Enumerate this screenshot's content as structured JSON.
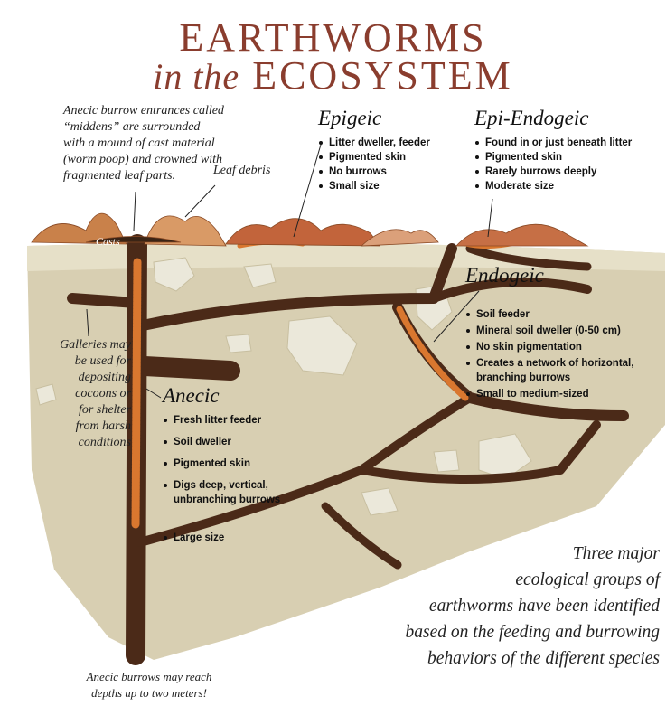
{
  "title": {
    "line1": "EARTHWORMS",
    "line2_prefix": "in the",
    "line2_main": "ECOSYSTEM"
  },
  "notes": {
    "middens": [
      "Anecic burrow entrances called",
      "“middens” are surrounded",
      "with a mound of cast material",
      "(worm poop) and crowned with",
      "fragmented leaf parts."
    ],
    "leaf_debris": "Leaf debris",
    "casts": "Casts",
    "galleries": [
      "Galleries may",
      "be used for",
      "depositing",
      "cocoons or",
      "for shelter",
      "from harsh",
      "conditions"
    ],
    "depth": [
      "Anecic burrows may reach",
      "depths up to two meters!"
    ],
    "summary": [
      "Three major",
      "ecological groups of",
      "earthworms have been identified",
      "based on the feeding and burrowing",
      "behaviors of the different species"
    ]
  },
  "groups": [
    {
      "name": "Epigeic",
      "traits": [
        "Litter dweller, feeder",
        "Pigmented skin",
        "No burrows",
        "Small size"
      ]
    },
    {
      "name": "Epi-Endogeic",
      "traits": [
        "Found in or just beneath litter",
        "Pigmented skin",
        "Rarely burrows deeply",
        "Moderate size"
      ]
    },
    {
      "name": "Endogeic",
      "traits": [
        "Soil feeder",
        "Mineral soil dweller (0-50 cm)",
        "No skin pigmentation",
        "Creates a network of horizontal, branching burrows",
        "Small to medium-sized"
      ]
    },
    {
      "name": "Anecic",
      "traits": [
        "Fresh litter feeder",
        "Soil dweller",
        "Pigmented skin",
        "Digs deep, vertical, unbranching burrows",
        "Large size"
      ]
    }
  ]
}
